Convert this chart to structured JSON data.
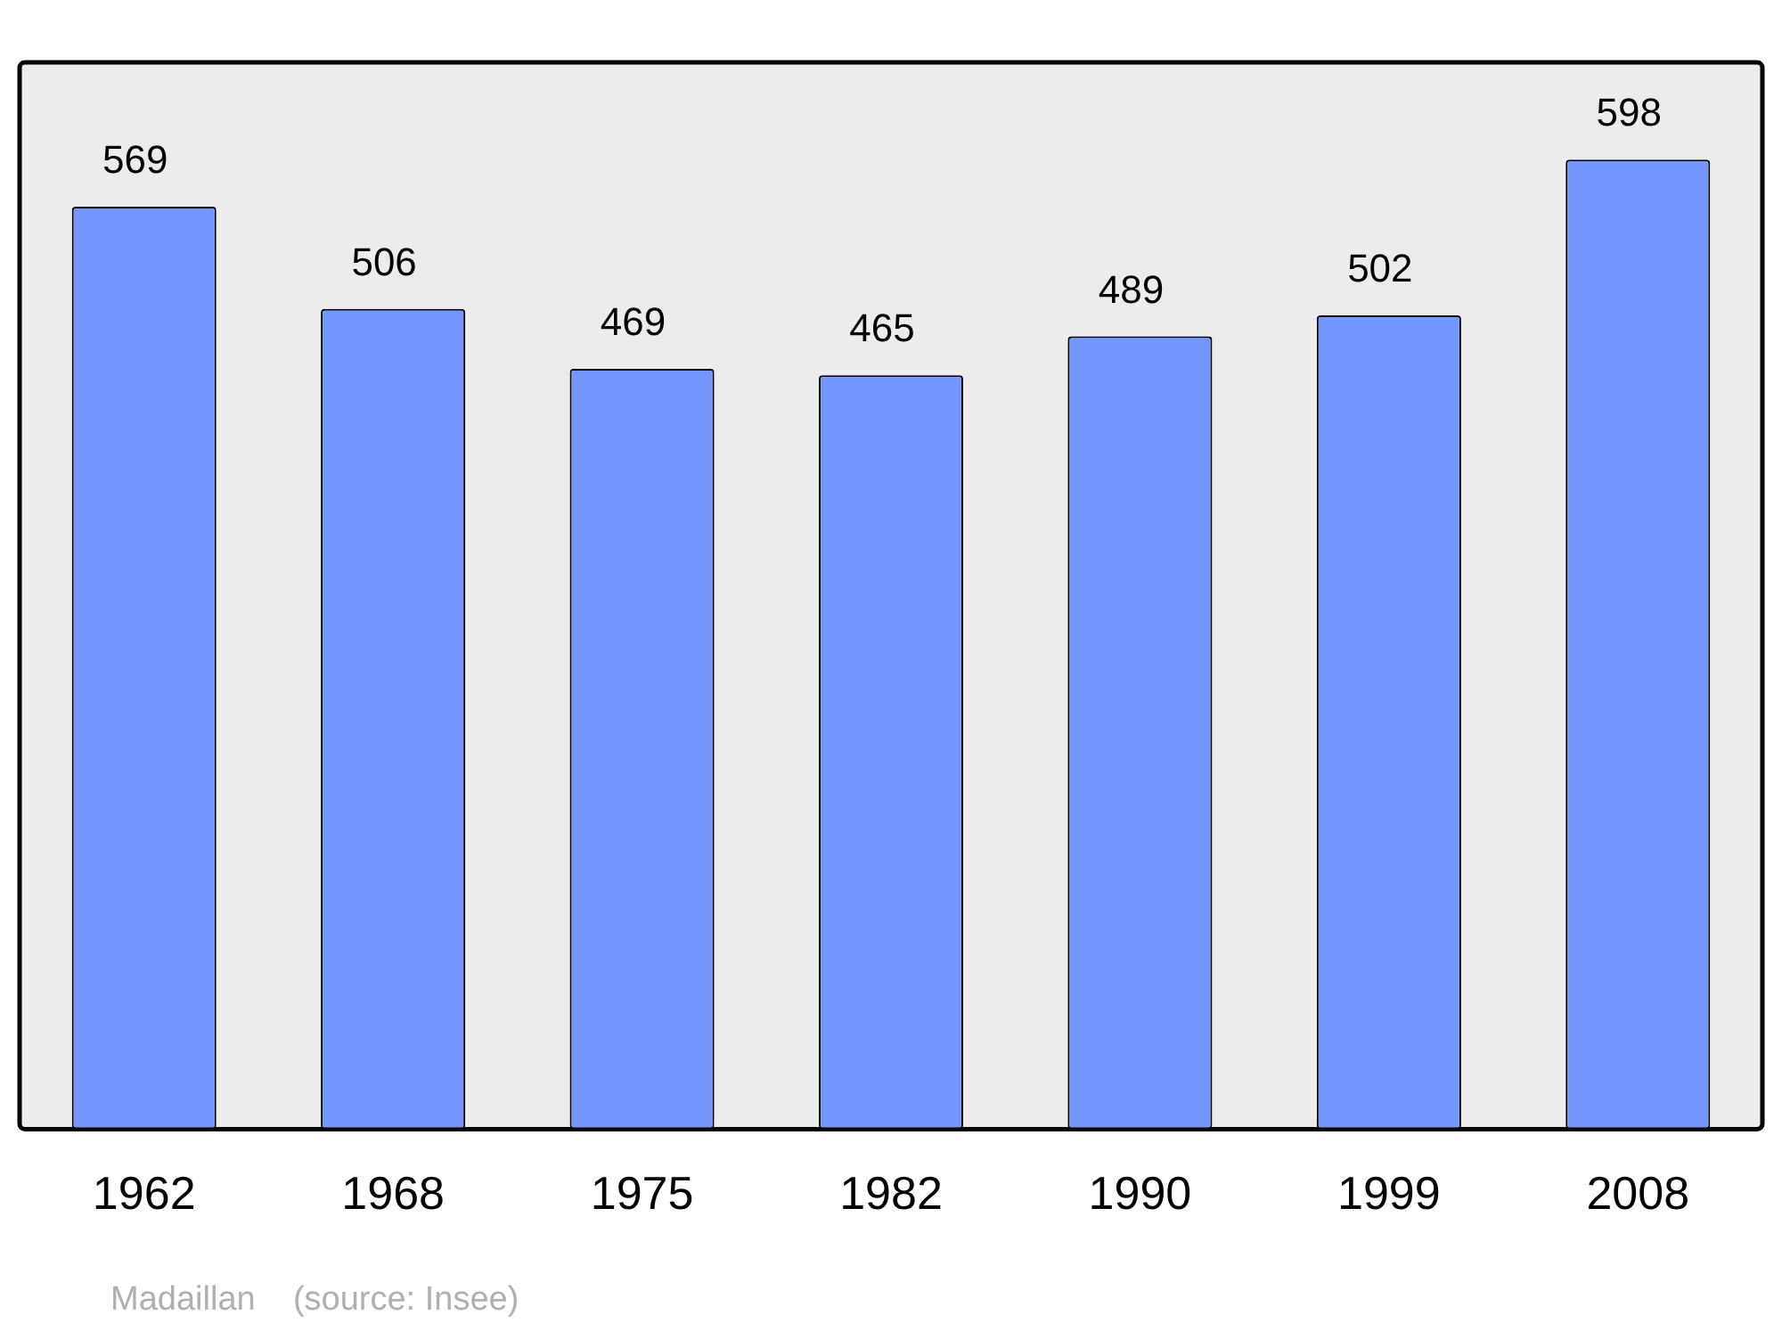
{
  "chart_data": {
    "type": "bar",
    "categories": [
      "1962",
      "1968",
      "1975",
      "1982",
      "1990",
      "1999",
      "2008"
    ],
    "values": [
      569,
      506,
      469,
      465,
      489,
      502,
      598
    ],
    "color": "#7397ff",
    "ylim": [
      0,
      658
    ],
    "data_labels": true,
    "grid": false,
    "legend": false,
    "tick_labels": "x",
    "annotations": [
      "Madaillan    (source: Insee)"
    ]
  }
}
